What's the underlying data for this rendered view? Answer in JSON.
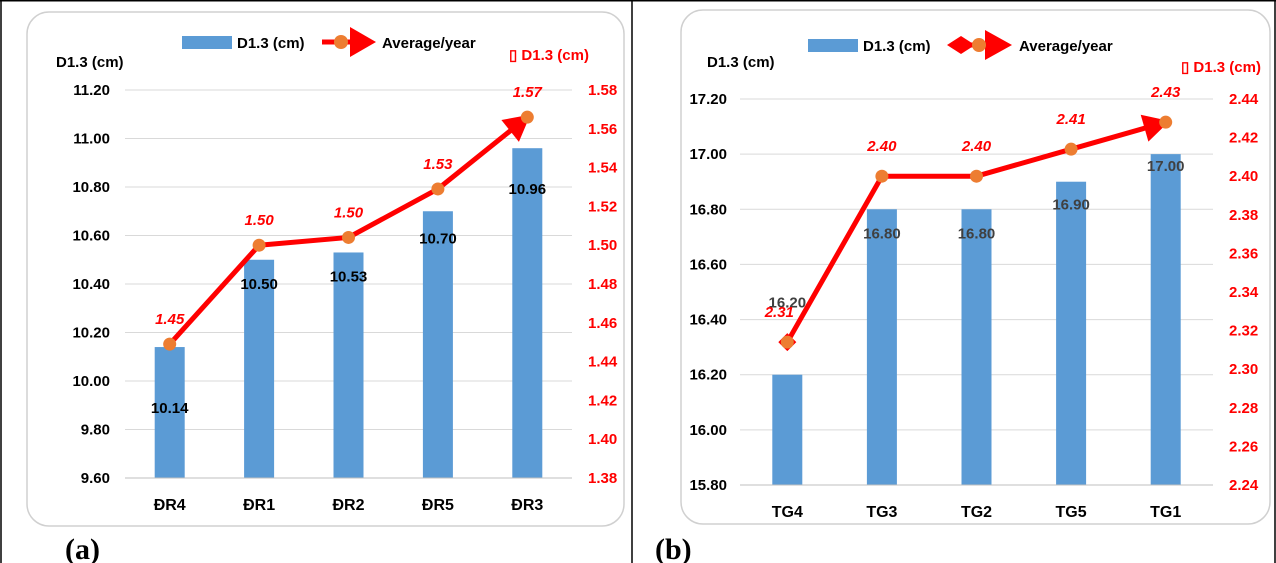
{
  "colors": {
    "bar": "#5b9bd5",
    "line": "#ff0000",
    "marker": "#ed7d31",
    "grid": "#d9d9d9",
    "left_axis_text": "#000000",
    "right_axis_text": "#ff0000"
  },
  "chart_data": [
    {
      "panel_label": "(a)",
      "type": "bar",
      "combo": "bar + line (secondary axis)",
      "categories": [
        "ĐR4",
        "ĐR1",
        "ĐR2",
        "ĐR5",
        "ĐR3"
      ],
      "series": [
        {
          "name": "D1.3 (cm)",
          "type": "bar",
          "axis": "left",
          "values": [
            10.14,
            10.5,
            10.53,
            10.7,
            10.96
          ],
          "labels": [
            "10.14",
            "10.50",
            "10.53",
            "10.70",
            "10.96"
          ]
        },
        {
          "name": "Average/year",
          "type": "line",
          "axis": "right",
          "values": [
            1.45,
            1.5,
            1.5,
            1.53,
            1.57
          ],
          "labels": [
            "1.45",
            "1.50",
            "1.50",
            "1.53",
            "1.57"
          ],
          "plotted_values": [
            1.449,
            1.5,
            1.504,
            1.529,
            1.566
          ]
        }
      ],
      "left_axis": {
        "title": "D1.3 (cm)",
        "ylim": [
          9.6,
          11.2
        ],
        "ticks": [
          "9.60",
          "9.80",
          "10.00",
          "10.20",
          "10.40",
          "10.60",
          "10.80",
          "11.00",
          "11.20"
        ]
      },
      "right_axis": {
        "title": "▯ D1.3 (cm)",
        "ylim": [
          1.38,
          1.58
        ],
        "ticks": [
          "1.38",
          "1.40",
          "1.42",
          "1.44",
          "1.46",
          "1.48",
          "1.50",
          "1.52",
          "1.54",
          "1.56",
          "1.58"
        ]
      },
      "grid": true,
      "legend_position": "top",
      "legend": [
        "D1.3 (cm)",
        "Average/year"
      ]
    },
    {
      "panel_label": "(b)",
      "type": "bar",
      "combo": "bar + line (secondary axis)",
      "categories": [
        "TG4",
        "TG3",
        "TG2",
        "TG5",
        "TG1"
      ],
      "series": [
        {
          "name": "D1.3 (cm)",
          "type": "bar",
          "axis": "left",
          "values": [
            16.2,
            16.8,
            16.8,
            16.9,
            17.0
          ],
          "labels": [
            "16.20",
            "16.80",
            "16.80",
            "16.90",
            "17.00"
          ]
        },
        {
          "name": "Average/year",
          "type": "line",
          "axis": "right",
          "values": [
            2.31,
            2.4,
            2.4,
            2.41,
            2.43
          ],
          "labels": [
            "2.31",
            "2.40",
            "2.40",
            "2.41",
            "2.43"
          ],
          "plotted_values": [
            2.314,
            2.4,
            2.4,
            2.414,
            2.428
          ]
        }
      ],
      "left_axis": {
        "title": "D1.3 (cm)",
        "ylim": [
          15.8,
          17.2
        ],
        "ticks": [
          "15.80",
          "16.00",
          "16.20",
          "16.40",
          "16.60",
          "16.80",
          "17.00",
          "17.20"
        ]
      },
      "right_axis": {
        "title": "▯ D1.3 (cm)",
        "ylim": [
          2.24,
          2.44
        ],
        "ticks": [
          "2.24",
          "2.26",
          "2.28",
          "2.30",
          "2.32",
          "2.34",
          "2.36",
          "2.38",
          "2.40",
          "2.42",
          "2.44"
        ]
      },
      "grid": true,
      "legend_position": "top",
      "legend": [
        "D1.3 (cm)",
        "Average/year"
      ]
    }
  ]
}
